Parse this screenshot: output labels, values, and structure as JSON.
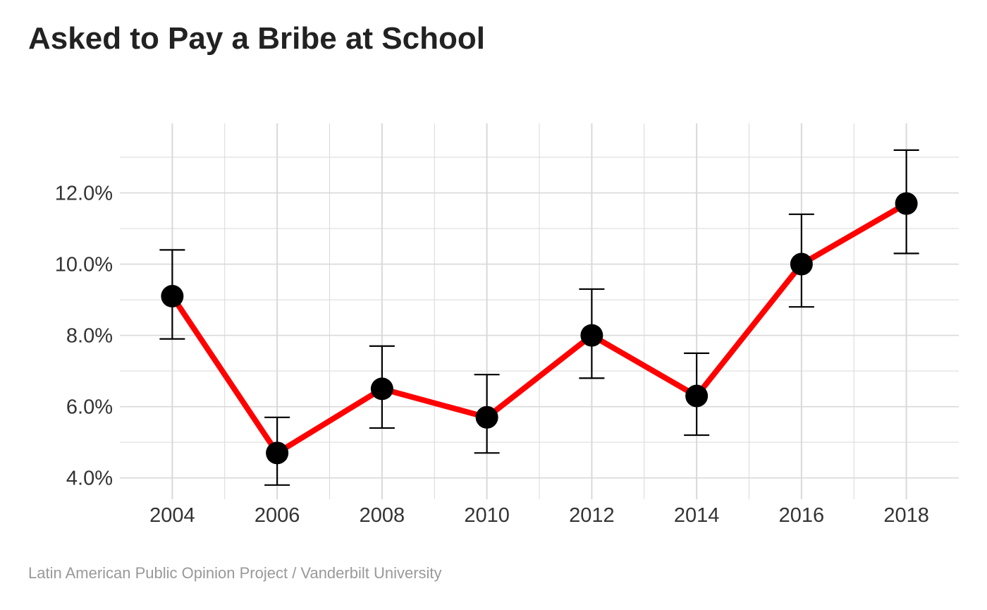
{
  "title": "Asked to Pay a Bribe at School",
  "caption": "Latin American Public Opinion Project / Vanderbilt University",
  "chart_data": {
    "type": "line",
    "title": "Asked to Pay a Bribe at School",
    "xlabel": "",
    "ylabel": "",
    "x": [
      2004,
      2006,
      2008,
      2010,
      2012,
      2014,
      2016,
      2018
    ],
    "x_tick_labels": [
      "2004",
      "2006",
      "2008",
      "2010",
      "2012",
      "2014",
      "2016",
      "2018"
    ],
    "y_tick_labels": [
      "4.0%",
      "6.0%",
      "8.0%",
      "10.0%",
      "12.0%"
    ],
    "y_ticks": [
      4,
      6,
      8,
      10,
      12
    ],
    "series": [
      {
        "values": [
          9.1,
          4.7,
          6.5,
          5.7,
          8.0,
          6.3,
          10.0,
          11.7
        ],
        "ci_low": [
          7.9,
          3.8,
          5.4,
          4.7,
          6.8,
          5.2,
          8.8,
          10.3
        ],
        "ci_high": [
          10.4,
          5.7,
          7.7,
          6.9,
          9.3,
          7.5,
          11.4,
          13.2
        ]
      }
    ],
    "xlim": [
      2003.0,
      2019.0
    ],
    "ylim": [
      3.4,
      13.95
    ],
    "grid": true,
    "colors": {
      "line": "#ff0000",
      "point": "#000000",
      "errorbar": "#000000",
      "grid": "#d9d9d9"
    }
  }
}
